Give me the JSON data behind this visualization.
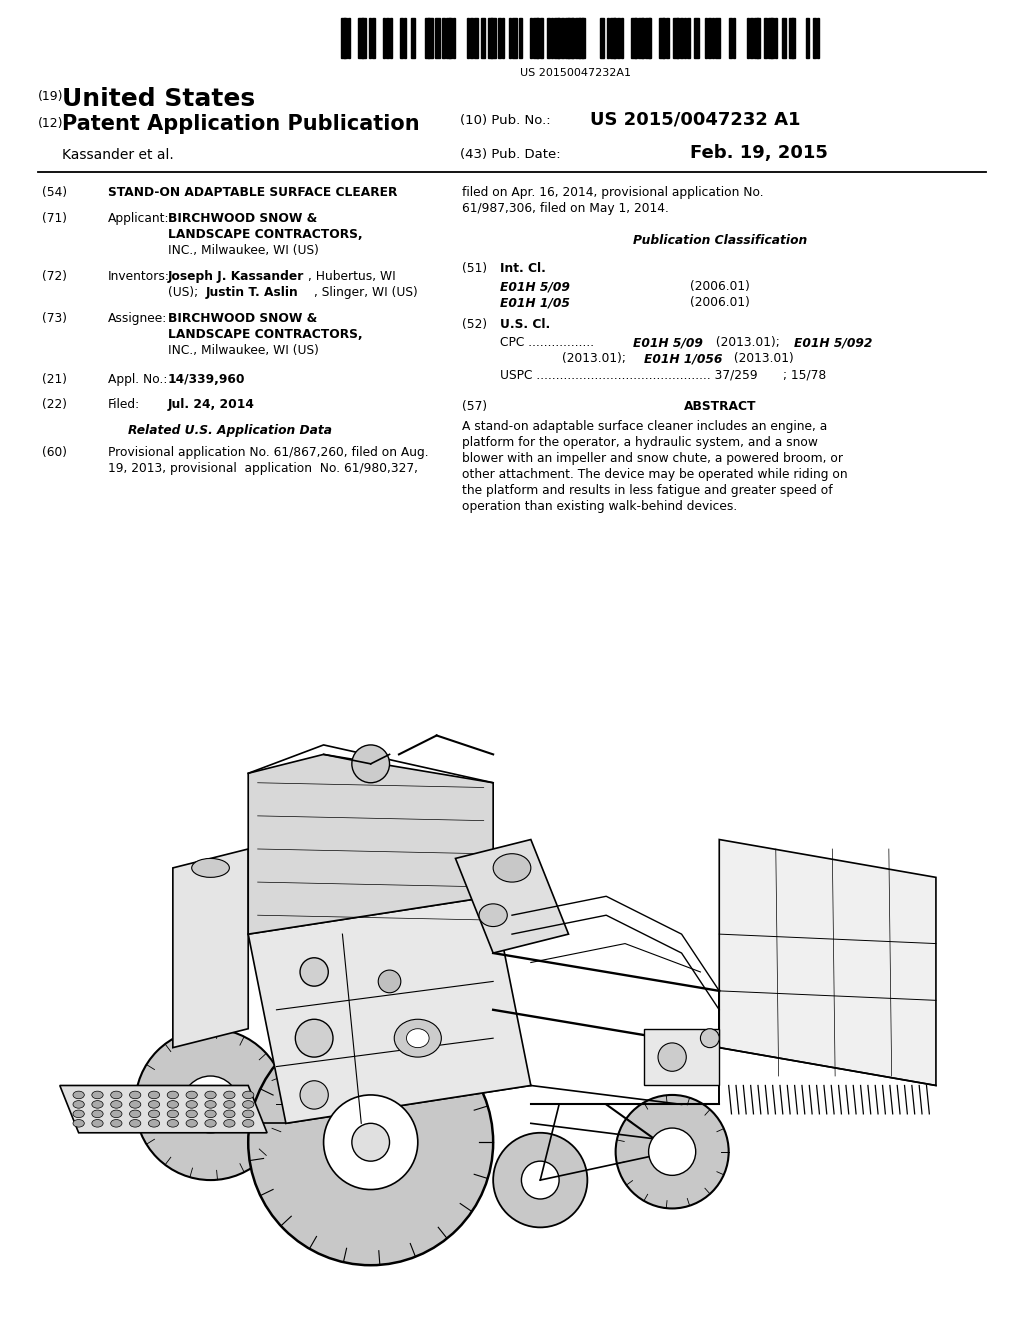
{
  "background_color": "#ffffff",
  "barcode_text": "US 20150047232A1",
  "patent_number": "US 2015/0047232 A1",
  "pub_date": "Feb. 19, 2015",
  "country": "United States",
  "doc_type": "Patent Application Publication",
  "inventor_name": "Kassander et al.",
  "pub_no_label": "(10) Pub. No.:",
  "pub_date_label": "(43) Pub. Date:",
  "num_19": "(19)",
  "num_12": "(12)",
  "section_54_title": "STAND-ON ADAPTABLE SURFACE CLEARER",
  "section_71_bold1": "BIRCHWOOD SNOW &",
  "section_71_bold2": "LANDSCAPE CONTRACTORS,",
  "section_71_normal": "INC., Milwaukee, WI (US)",
  "section_72_bold1": "Joseph J. Kassander",
  "section_72_normal1": ", Hubertus, WI",
  "section_72_normal2": "(US); ",
  "section_72_bold2": "Justin T. Aslin",
  "section_72_normal3": ", Slinger, WI (US)",
  "section_73_bold1": "BIRCHWOOD SNOW &",
  "section_73_bold2": "LANDSCAPE CONTRACTORS,",
  "section_73_normal": "INC., Milwaukee, WI (US)",
  "section_21_text": "14/339,960",
  "section_22_text": "Jul. 24, 2014",
  "related_header": "Related U.S. Application Data",
  "section_60_text1": "Provisional application No. 61/867,260, filed on Aug.",
  "section_60_text2": "19, 2013, provisional  application  No. 61/980,327,",
  "right_col_text1": "filed on Apr. 16, 2014, provisional application No.",
  "right_col_text2": "61/987,306, filed on May 1, 2014.",
  "pub_class_header": "Publication Classification",
  "section_51_e1": "E01H 5/09",
  "section_51_y1": "(2006.01)",
  "section_51_e2": "E01H 1/05",
  "section_51_y2": "(2006.01)",
  "section_52_cpc1_plain": "CPC .................",
  "section_52_cpc1_bold": "E01H 5/09",
  "section_52_cpc1_plain2": " (2013.01); ",
  "section_52_cpc1_bold2": "E01H 5/092",
  "section_52_cpc2_plain": "(2013.01); ",
  "section_52_cpc2_bold": "E01H 1/056",
  "section_52_cpc2_plain2": " (2013.01)",
  "section_52_uspc": "USPC ............................................. 37/259",
  "section_52_uspc2": "; 15/78",
  "abstract_text1": "A stand-on adaptable surface cleaner includes an engine, a",
  "abstract_text2": "platform for the operator, a hydraulic system, and a snow",
  "abstract_text3": "blower with an impeller and snow chute, a powered broom, or",
  "abstract_text4": "other attachment. The device may be operated while riding on",
  "abstract_text5": "the platform and results in less fatigue and greater speed of",
  "abstract_text6": "operation than existing walk-behind devices."
}
